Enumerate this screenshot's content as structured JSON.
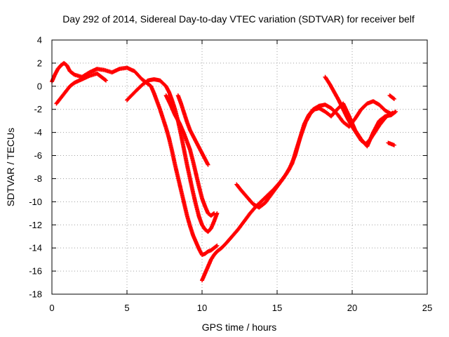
{
  "chart_data": {
    "type": "scatter",
    "title": "Day 292 of 2014, Sidereal Day-to-day VTEC variation (SDTVAR) for receiver belf",
    "xlabel": "GPS time / hours",
    "ylabel": "SDTVAR / TECUs",
    "xlim": [
      0,
      25
    ],
    "ylim": [
      -18,
      4
    ],
    "xticks": [
      0,
      5,
      10,
      15,
      20,
      25
    ],
    "xtick_labels": [
      "0",
      "5",
      "10",
      "15",
      "20",
      "25"
    ],
    "yticks": [
      -18,
      -16,
      -14,
      -12,
      -10,
      -8,
      -6,
      -4,
      -2,
      0,
      2,
      4
    ],
    "ytick_labels": [
      "-18",
      "-16",
      "-14",
      "-12",
      "-10",
      "-8",
      "-6",
      "-4",
      "-2",
      "0",
      "2",
      "4"
    ],
    "grid": true,
    "marker": "plus",
    "series_color": "#ff0000",
    "series": [
      {
        "name": "track-a",
        "x": [
          0.0,
          0.2,
          0.4,
          0.6,
          0.8,
          1.0,
          1.2,
          1.5,
          2.0,
          2.5,
          3.0,
          3.5,
          4.0,
          4.5,
          5.0,
          5.5,
          6.0,
          6.3,
          6.6,
          6.8,
          7.0,
          7.2,
          7.4,
          7.6,
          7.8,
          8.0,
          8.2,
          8.4,
          8.6,
          8.8,
          9.0,
          9.2,
          9.4,
          9.6,
          9.8,
          10.0,
          10.2,
          10.4,
          10.6,
          10.8,
          11.0
        ],
        "y": [
          0.4,
          1.0,
          1.5,
          1.8,
          2.0,
          1.8,
          1.3,
          1.0,
          0.8,
          1.2,
          1.5,
          1.4,
          1.2,
          1.5,
          1.6,
          1.3,
          0.6,
          0.3,
          0.0,
          -0.6,
          -1.3,
          -2.0,
          -2.8,
          -3.6,
          -4.5,
          -5.6,
          -6.8,
          -7.9,
          -9.0,
          -10.1,
          -11.2,
          -12.1,
          -12.9,
          -13.5,
          -14.1,
          -14.6,
          -14.5,
          -14.3,
          -14.2,
          -14.0,
          -13.8
        ]
      },
      {
        "name": "track-b",
        "x": [
          5.0,
          5.3,
          5.6,
          6.0,
          6.4,
          6.8,
          7.2,
          7.6,
          7.8,
          8.0,
          8.2,
          8.4,
          8.6,
          8.8,
          9.0,
          9.2,
          9.4,
          9.6,
          9.8,
          10.0,
          10.2,
          10.4,
          10.6,
          10.8,
          11.0
        ],
        "y": [
          -1.2,
          -0.8,
          -0.4,
          0.1,
          0.5,
          0.6,
          0.5,
          0.0,
          -0.5,
          -1.2,
          -2.0,
          -3.0,
          -4.2,
          -5.5,
          -6.8,
          -8.0,
          -9.2,
          -10.3,
          -11.3,
          -12.0,
          -12.4,
          -12.6,
          -12.3,
          -11.7,
          -11.0
        ]
      },
      {
        "name": "track-c",
        "x": [
          7.6,
          7.9,
          8.2,
          8.5,
          8.8,
          9.0,
          9.2,
          9.4,
          9.6,
          9.8,
          10.0,
          10.2,
          10.4,
          10.6,
          10.8
        ],
        "y": [
          -0.8,
          -1.6,
          -2.5,
          -3.2,
          -4.1,
          -4.8,
          -5.5,
          -6.5,
          -7.6,
          -8.7,
          -9.7,
          -10.4,
          -11.0,
          -11.2,
          -11.0
        ]
      },
      {
        "name": "track-d",
        "x": [
          0.3,
          0.6,
          0.9,
          1.2,
          1.5,
          2.0,
          2.5,
          3.0,
          3.3,
          3.6
        ],
        "y": [
          -1.5,
          -1.0,
          -0.5,
          0.0,
          0.3,
          0.6,
          0.9,
          1.1,
          0.8,
          0.5
        ]
      },
      {
        "name": "track-e",
        "x": [
          8.4,
          8.6,
          8.8,
          9.0,
          9.2,
          9.4,
          9.6,
          9.8,
          10.0,
          10.2,
          10.4
        ],
        "y": [
          -0.8,
          -1.5,
          -2.3,
          -3.1,
          -3.8,
          -4.3,
          -4.8,
          -5.3,
          -5.8,
          -6.3,
          -6.8
        ]
      },
      {
        "name": "track-f",
        "x": [
          10.0,
          10.2,
          10.4,
          10.6,
          10.8,
          11.0,
          11.3,
          11.6,
          12.0,
          12.4,
          12.8,
          13.2,
          13.6,
          14.0,
          14.4,
          14.8,
          15.2,
          15.6,
          16.0,
          16.3,
          16.6,
          16.9,
          17.2,
          17.5,
          17.8,
          18.2,
          18.6,
          19.0,
          19.4,
          19.8,
          20.2,
          20.6,
          21.0,
          21.4,
          21.8,
          22.2,
          22.6,
          22.9
        ],
        "y": [
          -16.8,
          -16.2,
          -15.6,
          -15.0,
          -14.6,
          -14.3,
          -14.0,
          -13.6,
          -13.0,
          -12.4,
          -11.7,
          -11.0,
          -10.4,
          -9.9,
          -9.4,
          -8.9,
          -8.3,
          -7.6,
          -6.7,
          -5.4,
          -4.2,
          -3.1,
          -2.4,
          -2.0,
          -1.9,
          -2.2,
          -2.6,
          -2.0,
          -1.5,
          -2.6,
          -3.8,
          -4.6,
          -5.2,
          -4.0,
          -3.0,
          -2.6,
          -2.5,
          -2.2
        ]
      },
      {
        "name": "track-g",
        "x": [
          12.3,
          12.6,
          13.0,
          13.4,
          13.8,
          14.2,
          14.6,
          15.0,
          15.4,
          15.8,
          16.2,
          16.5,
          16.8,
          17.1,
          17.4,
          17.8,
          18.2,
          18.6,
          19.0,
          19.4,
          19.8,
          20.2,
          20.6,
          21.0,
          21.4,
          21.8,
          22.2,
          22.6
        ],
        "y": [
          -8.5,
          -9.0,
          -9.6,
          -10.2,
          -10.5,
          -10.1,
          -9.4,
          -8.7,
          -8.0,
          -7.2,
          -6.0,
          -4.6,
          -3.3,
          -2.5,
          -2.0,
          -1.7,
          -1.6,
          -1.9,
          -2.4,
          -3.1,
          -3.5,
          -2.8,
          -2.0,
          -1.5,
          -1.3,
          -1.6,
          -2.1,
          -2.4
        ]
      },
      {
        "name": "track-h",
        "x": [
          18.2,
          18.5,
          18.8,
          19.1,
          19.4,
          19.7,
          20.0,
          20.3,
          20.6,
          20.9,
          21.2,
          21.5,
          21.8,
          22.1,
          22.4,
          22.7
        ],
        "y": [
          0.8,
          0.2,
          -0.5,
          -1.2,
          -2.0,
          -2.8,
          -3.5,
          -4.1,
          -4.7,
          -5.0,
          -4.6,
          -4.0,
          -3.4,
          -2.9,
          -2.5,
          -2.3
        ]
      },
      {
        "name": "track-i",
        "x": [
          22.4,
          22.6,
          22.8
        ],
        "y": [
          -4.9,
          -5.0,
          -5.1
        ]
      },
      {
        "name": "track-j",
        "x": [
          22.5,
          22.7,
          22.8
        ],
        "y": [
          -0.8,
          -1.0,
          -1.1
        ]
      }
    ]
  }
}
